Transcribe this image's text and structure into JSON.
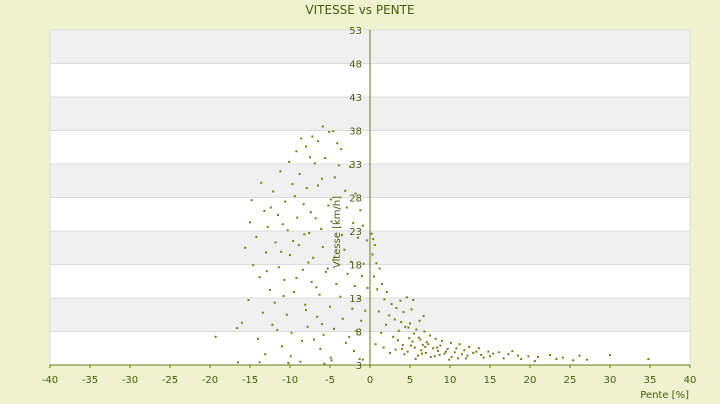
{
  "colors": {
    "background": "#eef2cf",
    "band_light": "#ffffff",
    "band_dark": "#f0f0f0",
    "grid": "#dcdcdc",
    "axis": "#6b7a17",
    "text": "#4a5a10",
    "point": "#6f7f18"
  },
  "chart_data": {
    "type": "scatter",
    "title": "VITESSE vs PENTE",
    "xlabel": "Pente [%]",
    "ylabel": "Vitesse [km/h]",
    "xlim": [
      -40,
      40
    ],
    "ylim": [
      3,
      53
    ],
    "x_ticks": [
      -40,
      -35,
      -30,
      -25,
      -20,
      -15,
      -10,
      -5,
      0,
      5,
      10,
      15,
      20,
      25,
      30,
      35,
      40
    ],
    "y_ticks": [
      3,
      8,
      13,
      18,
      23,
      28,
      33,
      38,
      43,
      48,
      53
    ],
    "grid": "horizontal alternating bands",
    "legend": "none",
    "series": [
      {
        "points": [
          [
            -5.9,
            38.6
          ],
          [
            -5.1,
            37.8
          ],
          [
            -4.6,
            37.9
          ],
          [
            -7.2,
            37.1
          ],
          [
            -8.6,
            36.8
          ],
          [
            -6.5,
            36.4
          ],
          [
            -4.1,
            36.1
          ],
          [
            -3.6,
            35.2
          ],
          [
            -8.0,
            35.6
          ],
          [
            -9.2,
            34.9
          ],
          [
            -7.5,
            34.0
          ],
          [
            -5.6,
            33.9
          ],
          [
            -6.9,
            33.1
          ],
          [
            -10.1,
            33.3
          ],
          [
            -3.9,
            32.8
          ],
          [
            -2.5,
            32.6
          ],
          [
            -11.2,
            31.9
          ],
          [
            -8.8,
            31.5
          ],
          [
            -6.0,
            30.8
          ],
          [
            -4.4,
            31.0
          ],
          [
            -13.6,
            30.2
          ],
          [
            -9.7,
            30.0
          ],
          [
            -7.9,
            29.4
          ],
          [
            -3.1,
            29.0
          ],
          [
            -1.8,
            28.6
          ],
          [
            -12.1,
            28.9
          ],
          [
            -14.8,
            27.6
          ],
          [
            -10.6,
            27.4
          ],
          [
            -8.3,
            27.0
          ],
          [
            -5.2,
            26.8
          ],
          [
            -2.9,
            26.5
          ],
          [
            -1.2,
            26.1
          ],
          [
            -13.2,
            26.0
          ],
          [
            -11.5,
            25.4
          ],
          [
            -9.1,
            25.0
          ],
          [
            -6.8,
            24.9
          ],
          [
            -4.8,
            24.4
          ],
          [
            -2.1,
            24.2
          ],
          [
            -0.9,
            23.8
          ],
          [
            -15.0,
            24.3
          ],
          [
            -12.8,
            23.6
          ],
          [
            -10.3,
            23.1
          ],
          [
            -7.6,
            22.7
          ],
          [
            -3.5,
            22.4
          ],
          [
            -1.5,
            22.0
          ],
          [
            -0.4,
            21.6
          ],
          [
            -14.2,
            22.1
          ],
          [
            -11.8,
            21.3
          ],
          [
            -8.9,
            20.9
          ],
          [
            -5.9,
            20.6
          ],
          [
            -3.2,
            20.2
          ],
          [
            -15.6,
            20.5
          ],
          [
            -13.0,
            19.8
          ],
          [
            -10.0,
            19.4
          ],
          [
            -7.1,
            19.0
          ],
          [
            -4.6,
            18.7
          ],
          [
            -2.4,
            18.4
          ],
          [
            -0.8,
            18.1
          ],
          [
            -14.6,
            17.9
          ],
          [
            -11.4,
            17.6
          ],
          [
            -8.4,
            17.2
          ],
          [
            -5.5,
            16.9
          ],
          [
            -2.8,
            16.6
          ],
          [
            -1.0,
            16.3
          ],
          [
            -13.8,
            16.1
          ],
          [
            -10.7,
            15.7
          ],
          [
            -7.3,
            15.4
          ],
          [
            -4.2,
            15.1
          ],
          [
            -1.9,
            14.8
          ],
          [
            -0.3,
            14.5
          ],
          [
            -12.5,
            14.2
          ],
          [
            -9.5,
            13.9
          ],
          [
            -6.3,
            13.5
          ],
          [
            -3.7,
            13.2
          ],
          [
            -1.4,
            12.9
          ],
          [
            -15.2,
            12.7
          ],
          [
            -11.9,
            12.3
          ],
          [
            -8.1,
            12.0
          ],
          [
            -5.0,
            11.7
          ],
          [
            -2.2,
            11.4
          ],
          [
            -0.6,
            11.1
          ],
          [
            -13.4,
            10.8
          ],
          [
            -10.4,
            10.5
          ],
          [
            -6.6,
            10.2
          ],
          [
            -3.4,
            9.9
          ],
          [
            -1.1,
            9.6
          ],
          [
            -16.0,
            9.3
          ],
          [
            -12.2,
            9.0
          ],
          [
            -7.8,
            8.7
          ],
          [
            -4.5,
            8.4
          ],
          [
            -1.7,
            8.1
          ],
          [
            -9.8,
            7.8
          ],
          [
            -5.8,
            7.5
          ],
          [
            -2.6,
            7.2
          ],
          [
            -14.0,
            6.9
          ],
          [
            -8.5,
            6.6
          ],
          [
            -3.0,
            6.3
          ],
          [
            -19.3,
            7.2
          ],
          [
            -16.6,
            8.5
          ],
          [
            -11.0,
            5.8
          ],
          [
            -6.2,
            5.4
          ],
          [
            -2.0,
            5.1
          ],
          [
            -13.1,
            4.6
          ],
          [
            -9.9,
            4.3
          ],
          [
            -4.9,
            4.1
          ],
          [
            -1.3,
            3.9
          ],
          [
            -16.5,
            3.4
          ],
          [
            -13.8,
            3.4
          ],
          [
            -10.2,
            3.3
          ],
          [
            -8.7,
            3.5
          ],
          [
            -5.7,
            3.2
          ],
          [
            -4.8,
            3.7
          ],
          [
            -0.9,
            3.8
          ],
          [
            -12.4,
            26.5
          ],
          [
            -9.4,
            28.2
          ],
          [
            -6.5,
            29.8
          ],
          [
            -4.9,
            27.7
          ],
          [
            -7.4,
            25.8
          ],
          [
            -10.9,
            24.0
          ],
          [
            -8.2,
            22.5
          ],
          [
            -6.1,
            23.3
          ],
          [
            -9.6,
            21.5
          ],
          [
            -11.1,
            19.9
          ],
          [
            -7.7,
            18.3
          ],
          [
            -5.3,
            17.4
          ],
          [
            -12.9,
            17.0
          ],
          [
            -9.2,
            16.0
          ],
          [
            -6.7,
            14.6
          ],
          [
            -10.8,
            13.3
          ],
          [
            -8.0,
            11.2
          ],
          [
            -6.0,
            9.1
          ],
          [
            -11.6,
            8.2
          ],
          [
            -7.0,
            6.8
          ],
          [
            0.2,
            22.6
          ],
          [
            0.4,
            21.8
          ],
          [
            0.6,
            20.9
          ],
          [
            0.3,
            19.5
          ],
          [
            0.8,
            18.2
          ],
          [
            1.2,
            17.4
          ],
          [
            0.5,
            16.2
          ],
          [
            1.5,
            15.1
          ],
          [
            0.9,
            14.3
          ],
          [
            2.1,
            13.9
          ],
          [
            1.8,
            12.8
          ],
          [
            2.7,
            12.1
          ],
          [
            3.3,
            11.5
          ],
          [
            1.1,
            11.0
          ],
          [
            2.4,
            10.4
          ],
          [
            3.8,
            12.6
          ],
          [
            4.6,
            13.1
          ],
          [
            5.4,
            12.7
          ],
          [
            4.2,
            10.9
          ],
          [
            3.1,
            9.8
          ],
          [
            5.0,
            9.2
          ],
          [
            2.0,
            9.0
          ],
          [
            6.2,
            9.6
          ],
          [
            4.4,
            8.7
          ],
          [
            3.6,
            8.1
          ],
          [
            5.8,
            8.3
          ],
          [
            6.8,
            8.0
          ],
          [
            7.5,
            7.4
          ],
          [
            1.4,
            7.8
          ],
          [
            2.9,
            7.2
          ],
          [
            4.9,
            7.0
          ],
          [
            6.1,
            7.1
          ],
          [
            8.2,
            6.9
          ],
          [
            9.0,
            6.6
          ],
          [
            3.5,
            6.7
          ],
          [
            5.3,
            6.5
          ],
          [
            7.1,
            6.4
          ],
          [
            10.1,
            6.3
          ],
          [
            11.2,
            6.1
          ],
          [
            4.1,
            6.0
          ],
          [
            6.6,
            6.0
          ],
          [
            8.8,
            5.9
          ],
          [
            12.4,
            5.7
          ],
          [
            13.6,
            5.5
          ],
          [
            5.6,
            5.6
          ],
          [
            7.9,
            5.5
          ],
          [
            9.7,
            5.4
          ],
          [
            11.8,
            5.2
          ],
          [
            14.8,
            5.0
          ],
          [
            16.1,
            4.9
          ],
          [
            6.4,
            5.2
          ],
          [
            8.5,
            5.1
          ],
          [
            10.6,
            4.9
          ],
          [
            12.9,
            4.8
          ],
          [
            15.4,
            4.7
          ],
          [
            17.3,
            4.6
          ],
          [
            7.0,
            4.8
          ],
          [
            9.3,
            4.7
          ],
          [
            11.5,
            4.6
          ],
          [
            13.9,
            4.5
          ],
          [
            18.5,
            4.4
          ],
          [
            19.8,
            4.3
          ],
          [
            21.0,
            4.2
          ],
          [
            22.5,
            4.5
          ],
          [
            24.1,
            4.1
          ],
          [
            26.2,
            4.4
          ],
          [
            27.1,
            3.8
          ],
          [
            25.4,
            3.7
          ],
          [
            23.3,
            3.9
          ],
          [
            20.6,
            3.6
          ],
          [
            18.9,
            3.9
          ],
          [
            16.7,
            4.0
          ],
          [
            14.2,
            4.1
          ],
          [
            12.0,
            4.0
          ],
          [
            10.2,
            4.2
          ],
          [
            8.1,
            4.3
          ],
          [
            6.0,
            4.4
          ],
          [
            4.3,
            4.6
          ],
          [
            5.1,
            5.9
          ],
          [
            6.9,
            5.7
          ],
          [
            4.7,
            5.0
          ],
          [
            7.6,
            4.2
          ],
          [
            9.9,
            3.8
          ],
          [
            5.7,
            3.9
          ],
          [
            3.2,
            5.3
          ],
          [
            2.5,
            4.8
          ],
          [
            1.7,
            5.6
          ],
          [
            0.7,
            6.1
          ],
          [
            34.8,
            3.9
          ],
          [
            30.0,
            4.5
          ],
          [
            5.5,
            7.7
          ],
          [
            6.3,
            6.8
          ],
          [
            7.3,
            6.1
          ],
          [
            8.4,
            5.6
          ],
          [
            9.5,
            5.0
          ],
          [
            10.8,
            5.5
          ],
          [
            12.2,
            4.4
          ],
          [
            13.3,
            5.0
          ],
          [
            15.0,
            4.3
          ],
          [
            17.8,
            5.1
          ],
          [
            4.8,
            8.6
          ],
          [
            3.9,
            9.4
          ],
          [
            6.7,
            10.3
          ],
          [
            5.2,
            11.3
          ],
          [
            4.0,
            5.4
          ],
          [
            6.5,
            4.7
          ],
          [
            8.7,
            4.5
          ],
          [
            11.0,
            4.0
          ]
        ]
      }
    ]
  }
}
